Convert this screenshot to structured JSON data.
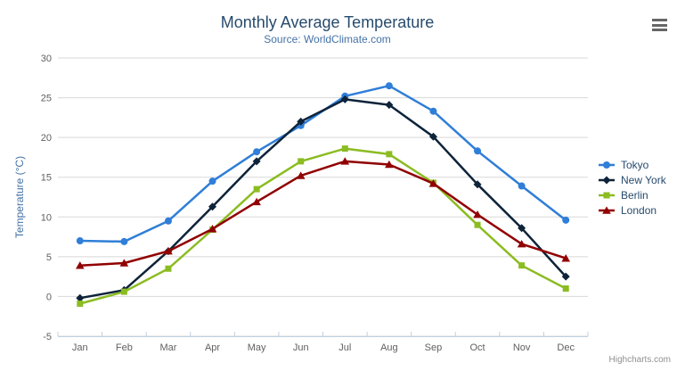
{
  "title": "Monthly Average Temperature",
  "subtitle": "Source: WorldClimate.com",
  "credits": "Highcharts.com",
  "icons": {
    "menu": "hamburger-menu-icon"
  },
  "colors": {
    "background": "#ffffff",
    "title": "#274b6d",
    "subtitle": "#4572A7",
    "axis_label": "#606060",
    "axis_title": "#4572A7",
    "grid": "#D8D8D8",
    "axis_line": "#C0D0E0",
    "legend_text": "#274b6d",
    "credits_text": "#909090",
    "menu_icon": "#666666"
  },
  "chart_data": {
    "type": "line",
    "title": "Monthly Average Temperature",
    "subtitle": "Source: WorldClimate.com",
    "xlabel": "",
    "ylabel": "Temperature (°C)",
    "ylim": [
      -5,
      30
    ],
    "yticks": [
      -5,
      0,
      5,
      10,
      15,
      20,
      25,
      30
    ],
    "grid": true,
    "legend_position": "right",
    "categories": [
      "Jan",
      "Feb",
      "Mar",
      "Apr",
      "May",
      "Jun",
      "Jul",
      "Aug",
      "Sep",
      "Oct",
      "Nov",
      "Dec"
    ],
    "series": [
      {
        "name": "Tokyo",
        "color": "#2f7ed8",
        "marker": "circle",
        "values": [
          7.0,
          6.9,
          9.5,
          14.5,
          18.2,
          21.5,
          25.2,
          26.5,
          23.3,
          18.3,
          13.9,
          9.6
        ]
      },
      {
        "name": "New York",
        "color": "#0d233a",
        "marker": "diamond",
        "values": [
          -0.2,
          0.8,
          5.7,
          11.3,
          17.0,
          22.0,
          24.8,
          24.1,
          20.1,
          14.1,
          8.6,
          2.5
        ]
      },
      {
        "name": "Berlin",
        "color": "#8bbc21",
        "marker": "square",
        "values": [
          -0.9,
          0.6,
          3.5,
          8.4,
          13.5,
          17.0,
          18.6,
          17.9,
          14.3,
          9.0,
          3.9,
          1.0
        ]
      },
      {
        "name": "London",
        "color": "#910000",
        "marker": "triangle",
        "values": [
          3.9,
          4.2,
          5.7,
          8.5,
          11.9,
          15.2,
          17.0,
          16.6,
          14.2,
          10.3,
          6.6,
          4.8
        ]
      }
    ]
  }
}
